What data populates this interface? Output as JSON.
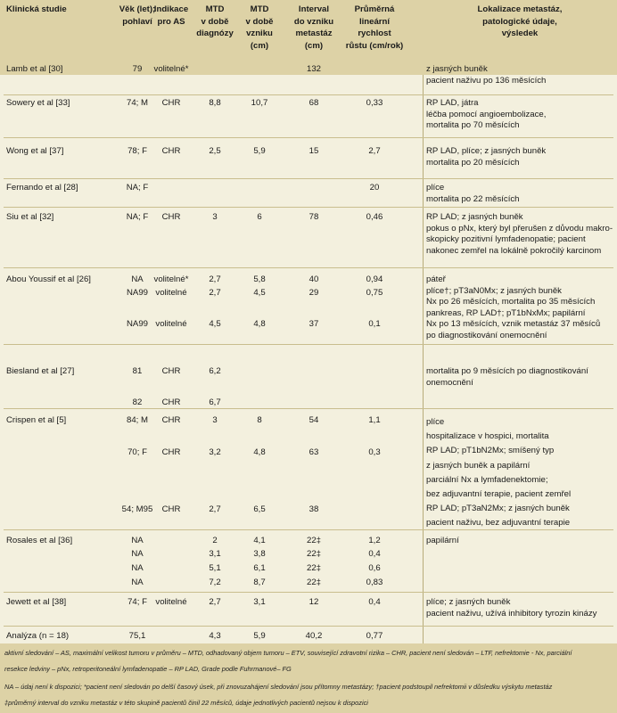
{
  "headers": {
    "study": "Klinická studie",
    "age": [
      "Věk (let);",
      "pohlaví"
    ],
    "indication": [
      "Indikace",
      "pro AS"
    ],
    "mtd_dx": [
      "MTD",
      "v době",
      "diagnózy"
    ],
    "mtd_onset": [
      "MTD",
      "v době",
      "vzniku",
      "(cm)"
    ],
    "interval": [
      "Interval",
      "do vzniku",
      "metastáz",
      "(cm)"
    ],
    "growth": [
      "Průměrná",
      "lineární",
      "rychlost",
      "růstu (cm/rok)"
    ],
    "localization": [
      "Lokalizace metastáz,",
      "patologické údaje,",
      "výsledek"
    ]
  },
  "rows": {
    "lamb": {
      "study": "Lamb et al [30]",
      "age": "79",
      "ind": "volitelné*",
      "interval": "132",
      "loc": [
        "z jasných buněk",
        "pacient naživu po 136 měsících"
      ]
    },
    "sowery": {
      "study": "Sowery et al [33]",
      "age": "74; M",
      "ind": "CHR",
      "mtd_dx": "8,8",
      "mtd_onset": "10,7",
      "interval": "68",
      "growth": "0,33",
      "loc": [
        "RP LAD, játra",
        "léčba pomocí angioembolizace,",
        "mortalita po 70 měsících"
      ]
    },
    "wong": {
      "study": "Wong et al [37]",
      "age": "78; F",
      "ind": "CHR",
      "mtd_dx": "2,5",
      "mtd_onset": "5,9",
      "interval": "15",
      "growth": "2,7",
      "loc": [
        "RP LAD, plíce; z jasných buněk",
        "mortalita po 20 měsících"
      ]
    },
    "fernando": {
      "study": "Fernando et al [28]",
      "age": "NA; F",
      "growth": "20",
      "loc": [
        "plíce",
        "mortalita po 22 měsících"
      ]
    },
    "siu": {
      "study": "Siu et al [32]",
      "age": "NA; F",
      "ind": "CHR",
      "mtd_dx": "3",
      "mtd_onset": "6",
      "interval": "78",
      "growth": "0,46",
      "loc": [
        "RP LAD; z jasných buněk",
        "pokus o pNx, který byl přerušen z důvodu makro-",
        "skopicky pozitivní lymfadenopatie; pacient",
        "nakonec zemřel na lokálně pokročilý karcinom"
      ]
    },
    "abou": {
      "study": "Abou Youssif et al [26]",
      "sub": [
        {
          "age": "NA",
          "ind": "volitelné*",
          "mtd_dx": "2,7",
          "mtd_onset": "5,8",
          "interval": "40",
          "growth": "0,94"
        },
        {
          "age": "NA99",
          "ind": "volitelné",
          "mtd_dx": "2,7",
          "mtd_onset": "4,5",
          "interval": "29",
          "growth": "0,75"
        },
        {
          "age": "NA99",
          "ind": "volitelné",
          "mtd_dx": "4,5",
          "mtd_onset": "4,8",
          "interval": "37",
          "growth": "0,1"
        }
      ],
      "loc": [
        "páteř",
        "plíce†; pT3aN0Mx; z jasných buněk",
        "Nx po 26 měsících, mortalita po 35 měsících",
        "pankreas, RP LAD†; pT1bNxMx; papilární",
        "Nx po 13 měsících, vznik metastáz 37 měsíců",
        "po diagnostikování onemocnění"
      ]
    },
    "biesland": {
      "study": "Biesland et al [27]",
      "sub": [
        {
          "age": "81",
          "ind": "CHR",
          "mtd_dx": "6,2"
        },
        {
          "age": "82",
          "ind": "CHR",
          "mtd_dx": "6,7"
        }
      ],
      "loc": [
        "mortalita po 9 měsících po diagnostikování",
        "onemocnění"
      ]
    },
    "crispen": {
      "study": "Crispen et al [5]",
      "sub": [
        {
          "age": "84; M",
          "ind": "CHR",
          "mtd_dx": "3",
          "mtd_onset": "8",
          "interval": "54",
          "growth": "1,1"
        },
        {
          "age": "70; F",
          "ind": "CHR",
          "mtd_dx": "3,2",
          "mtd_onset": "4,8",
          "interval": "63",
          "growth": "0,3"
        },
        {
          "age": "54; M95",
          "ind": "CHR",
          "mtd_dx": "2,7",
          "mtd_onset": "6,5",
          "interval": "38"
        }
      ],
      "loc": [
        "plíce",
        "hospitalizace v hospici, mortalita",
        "RP LAD; pT1bN2Mx; smíšený typ",
        "z jasných buněk a papilární",
        "parciální Nx a lymfadenektomie;",
        "bez adjuvantní terapie, pacient zemřel",
        "RP LAD; pT3aN2Mx; z jasných buněk",
        "pacient naživu, bez adjuvantní terapie"
      ]
    },
    "rosales": {
      "study": "Rosales et al [36]",
      "sub": [
        {
          "age": "NA",
          "mtd_dx": "2",
          "mtd_onset": "4,1",
          "interval": "22‡",
          "growth": "1,2"
        },
        {
          "age": "NA",
          "mtd_dx": "3,1",
          "mtd_onset": "3,8",
          "interval": "22‡",
          "growth": "0,4"
        },
        {
          "age": "NA",
          "mtd_dx": "5,1",
          "mtd_onset": "6,1",
          "interval": "22‡",
          "growth": "0,6"
        },
        {
          "age": "NA",
          "mtd_dx": "7,2",
          "mtd_onset": "8,7",
          "interval": "22‡",
          "growth": "0,83"
        }
      ],
      "loc": [
        "papilární"
      ]
    },
    "jewett": {
      "study": "Jewett et al [38]",
      "age": "74; F",
      "ind": "volitelné",
      "mtd_dx": "2,7",
      "mtd_onset": "3,1",
      "interval": "12",
      "growth": "0,4",
      "loc": [
        "plíce; z jasných buněk",
        "pacient naživu, užívá inhibitory tyrozin kinázy"
      ]
    },
    "analysis": {
      "study": "Analýza (n = 18)",
      "age": "75,1",
      "mtd_dx": "4,3",
      "mtd_onset": "5,9",
      "interval": "40,2",
      "growth": "0,77"
    }
  },
  "footnotes": [
    "aktivní sledování – AS, maximální velikost tumoru v průměru – MTD, odhadovaný objem tumoru – ETV, související zdravotní rizika – CHR, pacient není sledován – LTF, nefrektomie - Nx, parciální",
    "resekce ledviny – pNx, retroperitoneální lymfadenopatie – RP LAD, Grade podle Fuhrmanové– FG",
    "NA – údaj není k dispozici; *pacient není sledován po delší časový úsek, při znovuzahájení sledování jsou přítomny metastázy; †pacient podstoupil nefrektomii v důsledku výskytu metastáz",
    "‡průměrný interval do vzniku metastáz v této skupině pacientů činil 22 měsíců, údaje jednotlivých pacientů nejsou k dispozici"
  ]
}
